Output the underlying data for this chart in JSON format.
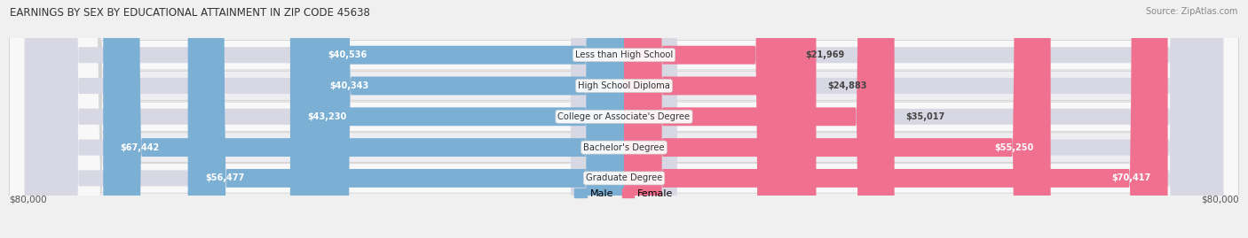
{
  "title": "Earnings by Sex by Educational Attainment in Zip Code 45638",
  "source": "Source: ZipAtlas.com",
  "categories": [
    "Less than High School",
    "High School Diploma",
    "College or Associate's Degree",
    "Bachelor's Degree",
    "Graduate Degree"
  ],
  "male_values": [
    40536,
    40343,
    43230,
    67442,
    56477
  ],
  "female_values": [
    21969,
    24883,
    35017,
    55250,
    70417
  ],
  "male_color": "#7bafd4",
  "female_color": "#f07090",
  "male_label": "Male",
  "female_label": "Female",
  "max_value": 80000,
  "xlabel_left": "$80,000",
  "xlabel_right": "$80,000",
  "row_light": "#f5f5f5",
  "row_dark": "#e8e8ee",
  "track_color": "#d8d8e4"
}
